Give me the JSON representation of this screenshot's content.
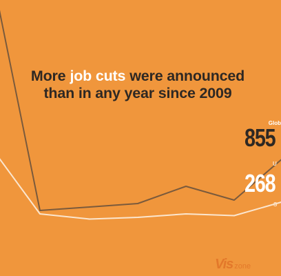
{
  "headline": {
    "before": "More",
    "highlight": "job cuts",
    "after": "were announced",
    "line2": "than in any year since 2009"
  },
  "chart_data": {
    "type": "line",
    "series": [
      {
        "values": [
          1.6,
          0.3,
          0.32,
          0.34,
          0.44,
          0.36,
          0.6
        ],
        "color": "#7a5a3c"
      },
      {
        "values": [
          0.64,
          0.28,
          0.25,
          0.26,
          0.28,
          0.27,
          0.35
        ],
        "color": "#fbe6cf"
      }
    ],
    "ylim": [
      0,
      1.6
    ],
    "grid": false
  },
  "labels": {
    "global_label": "Glob",
    "global_value": "855",
    "us_label": "U",
    "us_value": "268",
    "us_sub": "S"
  },
  "logo": {
    "mark": "Vis",
    "word": "zone"
  },
  "colors": {
    "background": "#f0963c",
    "ink": "#2e2823",
    "highlight": "#ffffff"
  }
}
